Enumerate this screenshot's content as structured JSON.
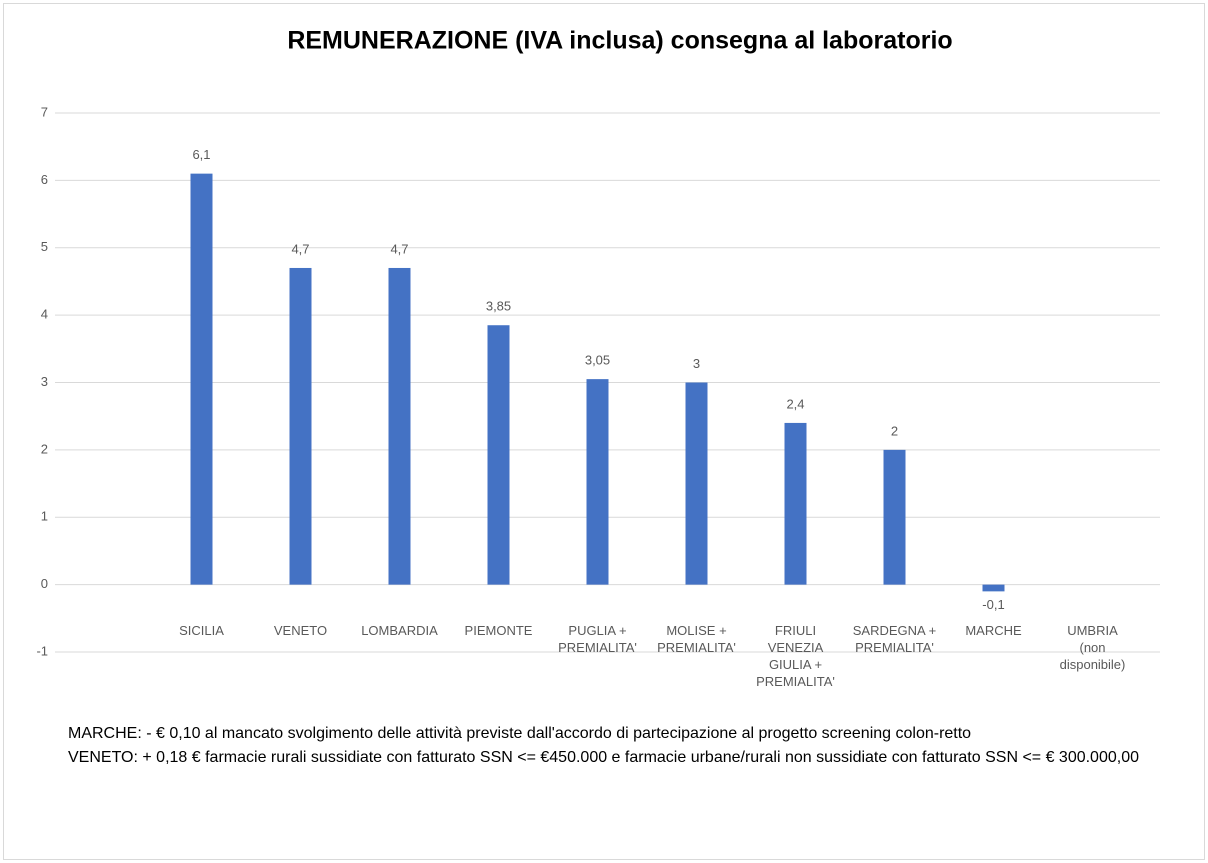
{
  "chart_data": {
    "type": "bar",
    "title": "REMUNERAZIONE (IVA inclusa) consegna al laboratorio",
    "categories": [
      "SICILIA",
      "VENETO",
      "LOMBARDIA",
      "PIEMONTE",
      "PUGLIA + PREMIALITA'",
      "MOLISE + PREMIALITA'",
      "FRIULI VENEZIA GIULIA + PREMIALITA'",
      "SARDEGNA + PREMIALITA'",
      "MARCHE",
      "UMBRIA (non disponibile)"
    ],
    "values": [
      6.1,
      4.7,
      4.7,
      3.85,
      3.05,
      3,
      2.4,
      2,
      -0.1,
      null
    ],
    "value_labels": [
      "6,1",
      "4,7",
      "4,7",
      "3,85",
      "3,05",
      "3",
      "2,4",
      "2",
      "-0,1",
      null
    ],
    "color": "#4472c4",
    "ylim": [
      -1,
      7
    ],
    "yticks": [
      -1,
      0,
      1,
      2,
      3,
      4,
      5,
      6,
      7
    ],
    "grid": true,
    "annotations": [
      "MARCHE:  - € 0,10 al mancato svolgimento delle attività previste dall'accordo di partecipazione al progetto screening colon-retto",
      "VENETO:  + 0,18 € farmacie rurali sussidiate con fatturato SSN <= €450.000 e farmacie urbane/rurali non sussidiate con fatturato SSN <= € 300.000,00"
    ]
  }
}
